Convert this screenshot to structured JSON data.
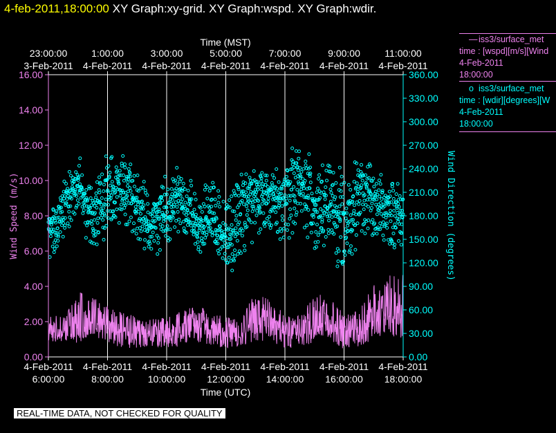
{
  "header": {
    "timestamp": "4-feb-2011,18:00:00",
    "graphs": "XY Graph:xy-grid.  XY Graph:wspd.  XY Graph:wdir."
  },
  "legend": [
    {
      "symbol": "—",
      "lines": [
        "iss3/surface_met",
        "time : [wspd][m/s][Wind",
        "4-Feb-2011",
        "18:00:00"
      ],
      "color": "#ee82ee"
    },
    {
      "symbol": "o",
      "lines": [
        "iss3/surface_met",
        "time : [wdir][degrees][W",
        "4-Feb-2011",
        "18:00:00"
      ],
      "color": "#00ffff"
    }
  ],
  "footer": "REAL-TIME DATA, NOT CHECKED FOR QUALITY",
  "chart_data": {
    "type": "line",
    "colors": {
      "wspd": "#ee82ee",
      "wdir": "#00ffff",
      "grid": "#ffffff"
    },
    "top_axis": {
      "title": "Time (MST)",
      "ticks": [
        [
          "23:00:00",
          "3-Feb-2011"
        ],
        [
          "1:00:00",
          "4-Feb-2011"
        ],
        [
          "3:00:00",
          "4-Feb-2011"
        ],
        [
          "5:00:00",
          "4-Feb-2011"
        ],
        [
          "7:00:00",
          "4-Feb-2011"
        ],
        [
          "9:00:00",
          "4-Feb-2011"
        ],
        [
          "11:00:00",
          "4-Feb-2011"
        ]
      ]
    },
    "bottom_axis": {
      "title": "Time (UTC)",
      "ticks": [
        [
          "4-Feb-2011",
          "6:00:00"
        ],
        [
          "4-Feb-2011",
          "8:00:00"
        ],
        [
          "4-Feb-2011",
          "10:00:00"
        ],
        [
          "4-Feb-2011",
          "12:00:00"
        ],
        [
          "4-Feb-2011",
          "14:00:00"
        ],
        [
          "4-Feb-2011",
          "16:00:00"
        ],
        [
          "4-Feb-2011",
          "18:00:00"
        ]
      ],
      "xlim": [
        "4-Feb-2011 6:00:00",
        "4-Feb-2011 18:00:00"
      ]
    },
    "left_axis": {
      "label": "Wind Speed (m/s)",
      "ylim": [
        0,
        16
      ],
      "ticks": [
        "0.00",
        "2.00",
        "4.00",
        "6.00",
        "8.00",
        "10.00",
        "12.00",
        "14.00",
        "16.00"
      ]
    },
    "right_axis": {
      "label": "Wind Direction (degrees)",
      "ylim": [
        0,
        360
      ],
      "ticks": [
        "0.00",
        "30.00",
        "60.00",
        "90.00",
        "120.00",
        "150.00",
        "180.00",
        "210.00",
        "240.00",
        "270.00",
        "300.00",
        "330.00",
        "360.00"
      ]
    },
    "grid": "vertical",
    "series": [
      {
        "name": "iss3/surface_met time : [wspd][m/s][Wind",
        "key": "wspd",
        "style": "line",
        "x_hours": [
          6.0,
          6.5,
          7.0,
          7.5,
          8.0,
          8.5,
          9.0,
          9.5,
          10.0,
          10.5,
          11.0,
          11.5,
          12.0,
          12.5,
          13.0,
          13.5,
          14.0,
          14.5,
          15.0,
          15.5,
          16.0,
          16.5,
          17.0,
          17.5,
          18.0
        ],
        "mean": [
          1.6,
          1.5,
          1.9,
          2.3,
          1.9,
          1.5,
          1.4,
          1.4,
          1.3,
          1.6,
          1.8,
          1.4,
          1.3,
          1.2,
          2.5,
          2.0,
          1.5,
          1.4,
          1.9,
          2.4,
          1.5,
          1.6,
          2.7,
          2.9,
          2.6
        ],
        "min": [
          0.9,
          0.8,
          0.8,
          1.2,
          0.8,
          0.5,
          0.5,
          0.6,
          0.5,
          0.6,
          0.8,
          0.6,
          0.5,
          0.6,
          0.9,
          0.8,
          0.5,
          0.6,
          0.8,
          1.0,
          0.4,
          0.6,
          1.0,
          1.2,
          1.0
        ],
        "max": [
          2.4,
          2.3,
          3.8,
          3.4,
          2.9,
          2.5,
          2.3,
          2.2,
          2.2,
          2.6,
          3.1,
          2.4,
          2.4,
          2.2,
          3.7,
          3.3,
          2.4,
          2.4,
          3.5,
          3.6,
          2.4,
          2.7,
          4.1,
          4.7,
          4.7
        ]
      },
      {
        "name": "iss3/surface_met time : [wdir][degrees][W",
        "key": "wdir",
        "style": "markers-o",
        "x_hours": [
          6.0,
          6.5,
          7.0,
          7.5,
          8.0,
          8.5,
          9.0,
          9.5,
          10.0,
          10.5,
          11.0,
          11.5,
          12.0,
          12.5,
          13.0,
          13.5,
          14.0,
          14.5,
          15.0,
          15.5,
          16.0,
          16.5,
          17.0,
          17.5,
          18.0
        ],
        "mean": [
          160,
          185,
          220,
          180,
          205,
          215,
          195,
          165,
          185,
          210,
          165,
          180,
          155,
          190,
          210,
          205,
          200,
          230,
          180,
          200,
          165,
          210,
          195,
          190,
          180
        ],
        "min": [
          120,
          140,
          170,
          130,
          155,
          160,
          150,
          120,
          135,
          160,
          120,
          140,
          110,
          95,
          150,
          150,
          130,
          160,
          130,
          140,
          90,
          150,
          140,
          130,
          130
        ],
        "max": [
          185,
          225,
          265,
          225,
          270,
          270,
          245,
          210,
          240,
          250,
          220,
          230,
          210,
          235,
          255,
          245,
          245,
          300,
          240,
          295,
          245,
          265,
          245,
          240,
          235
        ]
      }
    ]
  }
}
